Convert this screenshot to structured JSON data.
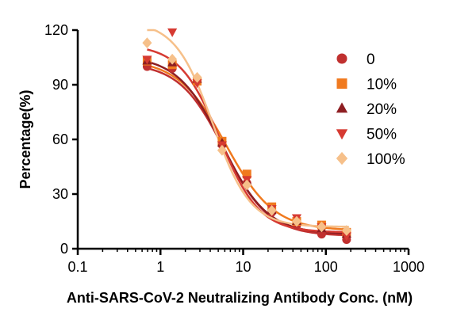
{
  "chart_data": {
    "type": "scatter",
    "xlabel": "Anti-SARS-CoV-2 Neutralizing Antibody Conc. (nM)",
    "ylabel": "Percentage(%)",
    "x_scale": "log",
    "xlim": [
      0.1,
      1000
    ],
    "ylim": [
      0,
      120
    ],
    "x_ticks": [
      "0.1",
      "1",
      "10",
      "100",
      "1000"
    ],
    "y_ticks": [
      "0",
      "30",
      "60",
      "90",
      "120"
    ],
    "grid": false,
    "legend_position": "right",
    "series": [
      {
        "name": "0",
        "marker": "circle",
        "color": "#c0302f",
        "x": [
          0.69,
          1.39,
          2.78,
          5.56,
          11.1,
          22.2,
          44.4,
          88.9,
          178
        ],
        "y": [
          100,
          99,
          93,
          57,
          36,
          20,
          13,
          8,
          5
        ],
        "curve": {
          "top": 102,
          "bottom": 7,
          "ec50": 5.9,
          "hill": 1.6
        }
      },
      {
        "name": "10%",
        "marker": "square",
        "color": "#f07a1f",
        "x": [
          0.69,
          1.39,
          2.78,
          5.56,
          11.1,
          22.2,
          44.4,
          88.9,
          178
        ],
        "y": [
          103,
          101,
          92,
          59,
          41,
          23,
          15,
          13,
          9
        ],
        "curve": {
          "top": 104,
          "bottom": 10,
          "ec50": 6.2,
          "hill": 1.5
        }
      },
      {
        "name": "20%",
        "marker": "triangle-up",
        "color": "#8e1e22",
        "x": [
          0.69,
          1.39,
          2.78,
          5.56,
          11.1,
          22.2,
          44.4,
          88.9,
          178
        ],
        "y": [
          103,
          102,
          93,
          58,
          37,
          21,
          15,
          11,
          8
        ],
        "curve": {
          "top": 106,
          "bottom": 8,
          "ec50": 5.6,
          "hill": 1.6
        }
      },
      {
        "name": "50%",
        "marker": "triangle-down",
        "color": "#d63a32",
        "x": [
          0.69,
          1.39,
          2.78,
          5.56,
          11.1,
          22.2,
          44.4,
          88.9,
          178
        ],
        "y": [
          104,
          119,
          91,
          57,
          38,
          22,
          17,
          12,
          7
        ],
        "curve": {
          "top": 112,
          "bottom": 9,
          "ec50": 5.2,
          "hill": 1.8
        }
      },
      {
        "name": "100%",
        "marker": "diamond",
        "color": "#f6c08a",
        "x": [
          0.69,
          1.39,
          2.78,
          5.56,
          11.1,
          22.2,
          44.4,
          88.9,
          178
        ],
        "y": [
          113,
          104,
          94,
          54,
          35,
          21,
          15,
          12,
          10
        ],
        "curve": {
          "top": 125,
          "bottom": 12,
          "ec50": 4.3,
          "hill": 1.9
        }
      }
    ]
  }
}
